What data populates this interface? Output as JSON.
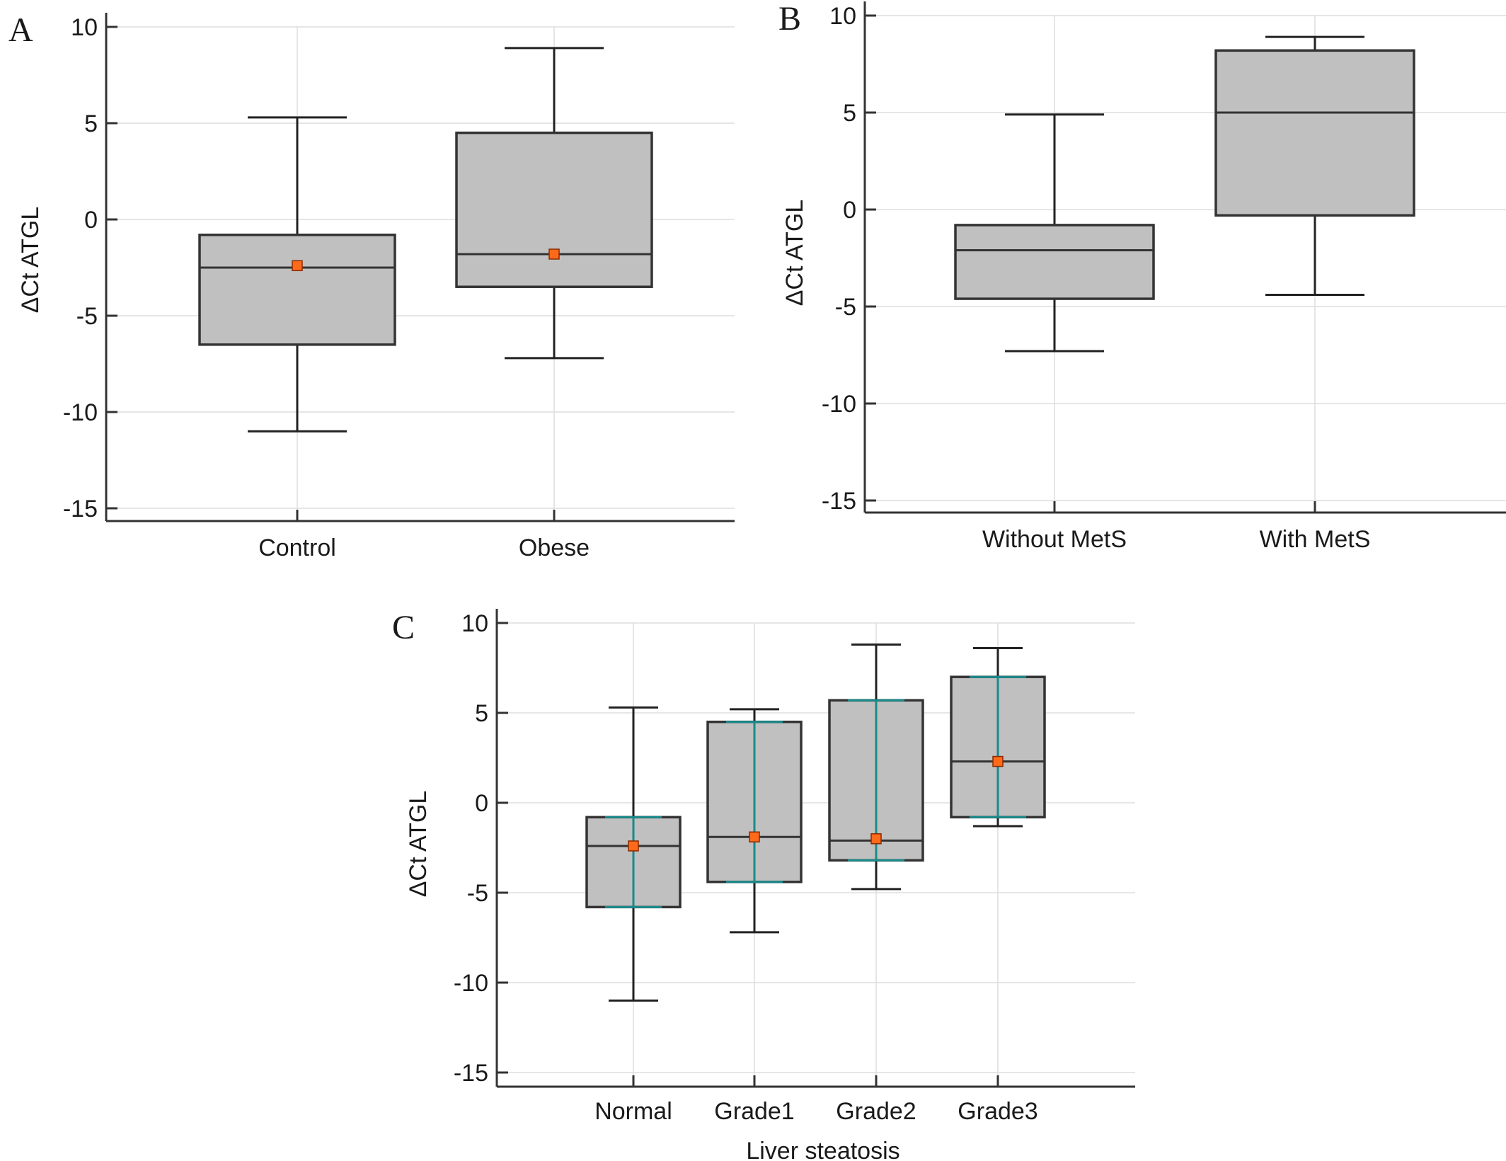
{
  "colors": {
    "box_fill": "#c0c0c0",
    "box_stroke": "#333333",
    "mean_marker": "#ff6a1a",
    "ci_line": "#1a8a8a",
    "grid": "#dddddd"
  },
  "chart_data": [
    {
      "panel": "A",
      "type": "box",
      "ylabel": "ΔCt ATGL",
      "xlabel": "",
      "ylim": [
        -15.7,
        10.7
      ],
      "yticks": [
        10,
        5,
        0,
        -5,
        -10,
        -15
      ],
      "grid": true,
      "categories": [
        "Control",
        "Obese"
      ],
      "boxes": [
        {
          "min": -11.0,
          "q1": -6.5,
          "median": -2.5,
          "q3": -0.8,
          "max": 5.3,
          "mean": -2.4
        },
        {
          "min": -7.2,
          "q1": -3.5,
          "median": -1.8,
          "q3": 4.5,
          "max": 8.9,
          "mean": -1.8
        }
      ]
    },
    {
      "panel": "B",
      "type": "box",
      "ylabel": "ΔCt ATGL",
      "xlabel": "",
      "ylim": [
        -15.7,
        10.7
      ],
      "yticks": [
        10,
        5,
        0,
        -5,
        -10,
        -15
      ],
      "grid": true,
      "categories": [
        "Without MetS",
        "With MetS"
      ],
      "boxes": [
        {
          "min": -7.3,
          "q1": -4.6,
          "median": -2.1,
          "q3": -0.8,
          "max": 4.9
        },
        {
          "min": -4.4,
          "q1": -0.3,
          "median": 5.0,
          "q3": 8.2,
          "max": 8.9
        }
      ]
    },
    {
      "panel": "C",
      "type": "box",
      "ylabel": "ΔCt ATGL",
      "xlabel": "Liver steatosis",
      "ylim": [
        -15.7,
        10.7
      ],
      "yticks": [
        10,
        5,
        0,
        -5,
        -10,
        -15
      ],
      "grid": true,
      "categories": [
        "Normal",
        "Grade1",
        "Grade2",
        "Grade3"
      ],
      "boxes": [
        {
          "min": -11.0,
          "q1": -5.8,
          "median": -2.4,
          "q3": -0.8,
          "max": 5.3,
          "mean": -2.4,
          "ci": [
            -5.8,
            -0.8
          ]
        },
        {
          "min": -7.2,
          "q1": -4.4,
          "median": -1.9,
          "q3": 4.5,
          "max": 5.2,
          "mean": -1.9,
          "ci": [
            -4.4,
            4.5
          ]
        },
        {
          "min": -4.8,
          "q1": -3.2,
          "median": -2.1,
          "q3": 5.7,
          "max": 8.8,
          "mean": -2.0,
          "ci": [
            -3.2,
            5.7
          ]
        },
        {
          "min": -1.3,
          "q1": -0.8,
          "median": 2.3,
          "q3": 7.0,
          "max": 8.6,
          "mean": 2.3,
          "ci": [
            -0.8,
            7.0
          ]
        }
      ]
    }
  ]
}
